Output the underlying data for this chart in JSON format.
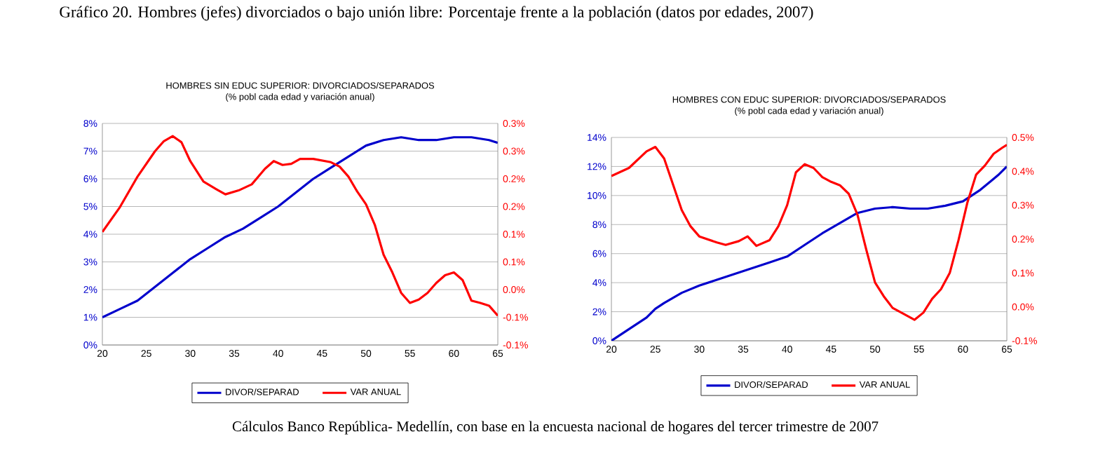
{
  "chart_data": [
    {
      "type": "line",
      "title": "HOMBRES SIN EDUC SUPERIOR: DIVORCIADOS/SEPARADOS",
      "subtitle": "(% pobl cada edad y variación anual)",
      "annotations": [
        "Gráfico 20.  Hombres (jefes) divorciados o bajo unión libre: Porcentaje frente a la población (datos por edades, 2007)"
      ],
      "xlim": [
        20,
        65
      ],
      "xticks": [
        20,
        25,
        30,
        35,
        40,
        45,
        50,
        55,
        60,
        65
      ],
      "ylim": [
        0,
        8
      ],
      "yticks": [
        {
          "value": 0,
          "label": "0%"
        },
        {
          "value": 1,
          "label": "1%"
        },
        {
          "value": 2,
          "label": "2%"
        },
        {
          "value": 3,
          "label": "3%"
        },
        {
          "value": 4,
          "label": "4%"
        },
        {
          "value": 5,
          "label": "5%"
        },
        {
          "value": 6,
          "label": "6%"
        },
        {
          "value": 7,
          "label": "7%"
        },
        {
          "value": 8,
          "label": "8%"
        }
      ],
      "y2lim": [
        -0.1,
        0.3
      ],
      "y2ticks": [
        {
          "value": -0.1,
          "label": "-0.1%"
        },
        {
          "value": -0.05,
          "label": "-0.1%"
        },
        {
          "value": 0,
          "label": "0.0%"
        },
        {
          "value": 0.05,
          "label": "0.1%"
        },
        {
          "value": 0.1,
          "label": "0.1%"
        },
        {
          "value": 0.15,
          "label": "0.2%"
        },
        {
          "value": 0.2,
          "label": "0.2%"
        },
        {
          "value": 0.25,
          "label": "0.3%"
        },
        {
          "value": 0.3,
          "label": "0.3%"
        }
      ],
      "grid": "y",
      "legend": "bottom",
      "marker": "none",
      "series": [
        {
          "name": "DIVOR/SEPARAD",
          "color": "#0000cc",
          "x": [
            20,
            22,
            24,
            26,
            28,
            30,
            32,
            34,
            36,
            38,
            40,
            42,
            44,
            46,
            48,
            50,
            52,
            54,
            56,
            58,
            60,
            62,
            64,
            65
          ],
          "values": [
            1.0,
            1.3,
            1.6,
            2.1,
            2.6,
            3.1,
            3.5,
            3.9,
            4.2,
            4.6,
            5.0,
            5.5,
            6.0,
            6.4,
            6.8,
            7.2,
            7.4,
            7.5,
            7.4,
            7.4,
            7.5,
            7.5,
            7.4,
            7.3
          ]
        },
        {
          "name": "VAR ANUAL",
          "color": "#ff0000",
          "axis": "y2",
          "x": [
            20,
            22,
            24,
            26,
            27,
            28,
            29,
            30,
            31.5,
            33,
            34,
            35.5,
            37,
            38.5,
            39.5,
            40.5,
            41.5,
            42.5,
            44,
            46,
            47,
            48,
            49,
            50,
            51,
            52,
            53,
            54,
            55,
            56,
            57,
            58,
            59,
            60,
            61,
            62,
            63,
            64,
            65
          ],
          "values": [
            0.104,
            0.149,
            0.204,
            0.25,
            0.268,
            0.277,
            0.266,
            0.232,
            0.195,
            0.181,
            0.172,
            0.179,
            0.19,
            0.218,
            0.232,
            0.225,
            0.227,
            0.236,
            0.236,
            0.23,
            0.222,
            0.204,
            0.177,
            0.154,
            0.117,
            0.063,
            0.031,
            -0.006,
            -0.024,
            -0.018,
            -0.006,
            0.012,
            0.026,
            0.031,
            0.017,
            -0.02,
            -0.024,
            -0.029,
            -0.047
          ]
        }
      ]
    },
    {
      "type": "line",
      "title": "HOMBRES CON EDUC SUPERIOR: DIVORCIADOS/SEPARADOS",
      "subtitle": "(% pobl cada edad y variación anual)",
      "annotations": [
        "Cálculos Banco República- Medellín, con base en la encuesta nacional de hogares del tercer trimestre de 2007"
      ],
      "xlim": [
        20,
        65
      ],
      "xticks": [
        20,
        25,
        30,
        35,
        40,
        45,
        50,
        55,
        60,
        65
      ],
      "ylim": [
        0,
        14
      ],
      "yticks": [
        {
          "value": 0,
          "label": "0%"
        },
        {
          "value": 2,
          "label": "2%"
        },
        {
          "value": 4,
          "label": "4%"
        },
        {
          "value": 6,
          "label": "6%"
        },
        {
          "value": 8,
          "label": "8%"
        },
        {
          "value": 10,
          "label": "10%"
        },
        {
          "value": 12,
          "label": "12%"
        },
        {
          "value": 14,
          "label": "14%"
        }
      ],
      "y2lim": [
        -0.1,
        0.5
      ],
      "y2ticks": [
        {
          "value": -0.1,
          "label": "-0.1%"
        },
        {
          "value": 0,
          "label": "0.0%"
        },
        {
          "value": 0.1,
          "label": "0.1%"
        },
        {
          "value": 0.2,
          "label": "0.2%"
        },
        {
          "value": 0.3,
          "label": "0.3%"
        },
        {
          "value": 0.4,
          "label": "0.4%"
        },
        {
          "value": 0.5,
          "label": "0.5%"
        }
      ],
      "grid": "y",
      "legend": "bottom",
      "marker": "none",
      "series": [
        {
          "name": "DIVOR/SEPARAD",
          "color": "#0000cc",
          "x": [
            20,
            22,
            24,
            25,
            26,
            28,
            30,
            32,
            34,
            36,
            38,
            40,
            42,
            44,
            46,
            48,
            50,
            52,
            54,
            56,
            58,
            60,
            62,
            64,
            65
          ],
          "values": [
            0,
            0.8,
            1.6,
            2.2,
            2.6,
            3.3,
            3.8,
            4.2,
            4.6,
            5.0,
            5.4,
            5.8,
            6.6,
            7.4,
            8.1,
            8.8,
            9.1,
            9.2,
            9.1,
            9.1,
            9.3,
            9.6,
            10.4,
            11.4,
            12.0
          ]
        },
        {
          "name": "VAR ANUAL",
          "color": "#ff0000",
          "axis": "y2",
          "x": [
            20,
            22,
            24,
            25,
            26,
            27,
            28,
            29,
            30,
            32,
            33,
            34.5,
            35.5,
            36.5,
            38,
            39,
            40,
            41,
            42,
            43,
            44,
            45,
            46,
            47,
            48,
            49,
            50,
            51,
            52,
            53,
            54.5,
            55.5,
            56.5,
            57.5,
            58.5,
            59.5,
            60.5,
            61.5,
            62.5,
            63.5,
            64.5,
            65
          ],
          "values": [
            0.386,
            0.41,
            0.459,
            0.472,
            0.438,
            0.362,
            0.286,
            0.238,
            0.208,
            0.19,
            0.183,
            0.194,
            0.208,
            0.18,
            0.197,
            0.238,
            0.3,
            0.397,
            0.421,
            0.41,
            0.383,
            0.369,
            0.359,
            0.334,
            0.272,
            0.169,
            0.072,
            0.031,
            -0.003,
            -0.017,
            -0.038,
            -0.017,
            0.024,
            0.052,
            0.1,
            0.197,
            0.307,
            0.39,
            0.417,
            0.452,
            0.47,
            0.478
          ]
        }
      ]
    }
  ]
}
